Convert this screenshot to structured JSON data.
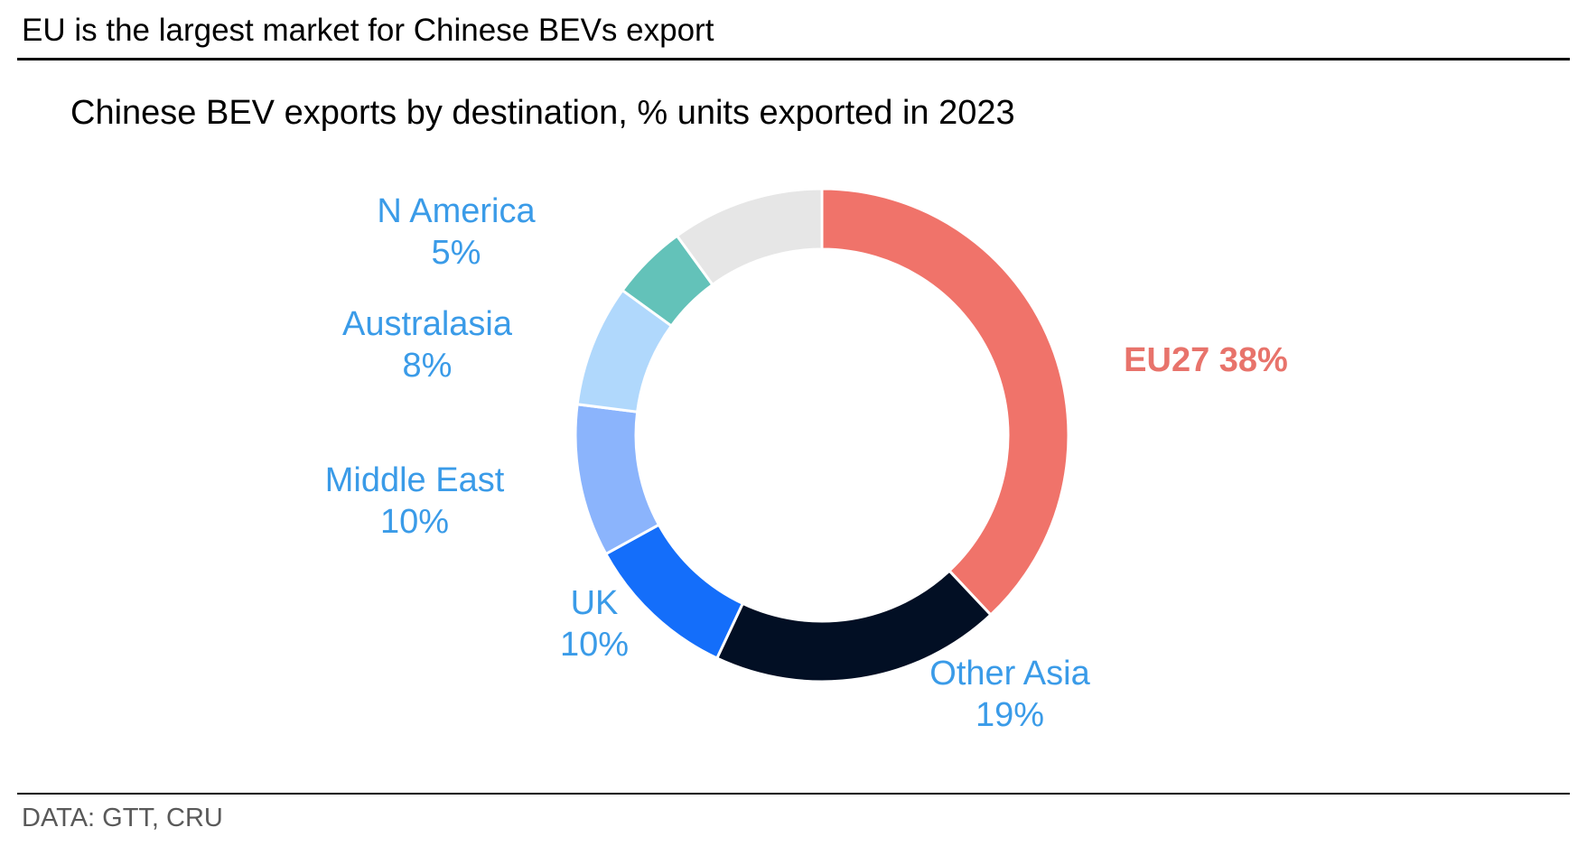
{
  "header": {
    "headline": "EU is the largest market for Chinese BEVs export",
    "subtitle": "Chinese BEV exports by destination, % units exported in 2023"
  },
  "footer": {
    "source": "DATA: GTT, CRU"
  },
  "chart_data": {
    "type": "pie",
    "variant": "donut",
    "title": "Chinese BEV exports by destination, % units exported in 2023",
    "label_color": "#3A9BE8",
    "slices": [
      {
        "name": "EU27",
        "value": 38,
        "value_label": "38%",
        "color": "#F0736A",
        "label_color": "#E8736B",
        "label_bold": true
      },
      {
        "name": "Other Asia",
        "value": 19,
        "value_label": "19%",
        "color": "#020F24"
      },
      {
        "name": "UK",
        "value": 10,
        "value_label": "10%",
        "color": "#146EFA"
      },
      {
        "name": "Middle East",
        "value": 10,
        "value_label": "10%",
        "color": "#8BB4FC"
      },
      {
        "name": "Australasia",
        "value": 8,
        "value_label": "8%",
        "color": "#B0D8FC"
      },
      {
        "name": "N America",
        "value": 5,
        "value_label": "5%",
        "color": "#63C2B9"
      },
      {
        "name": "",
        "value": 10,
        "value_label": "",
        "color": "#E6E6E6"
      }
    ]
  }
}
